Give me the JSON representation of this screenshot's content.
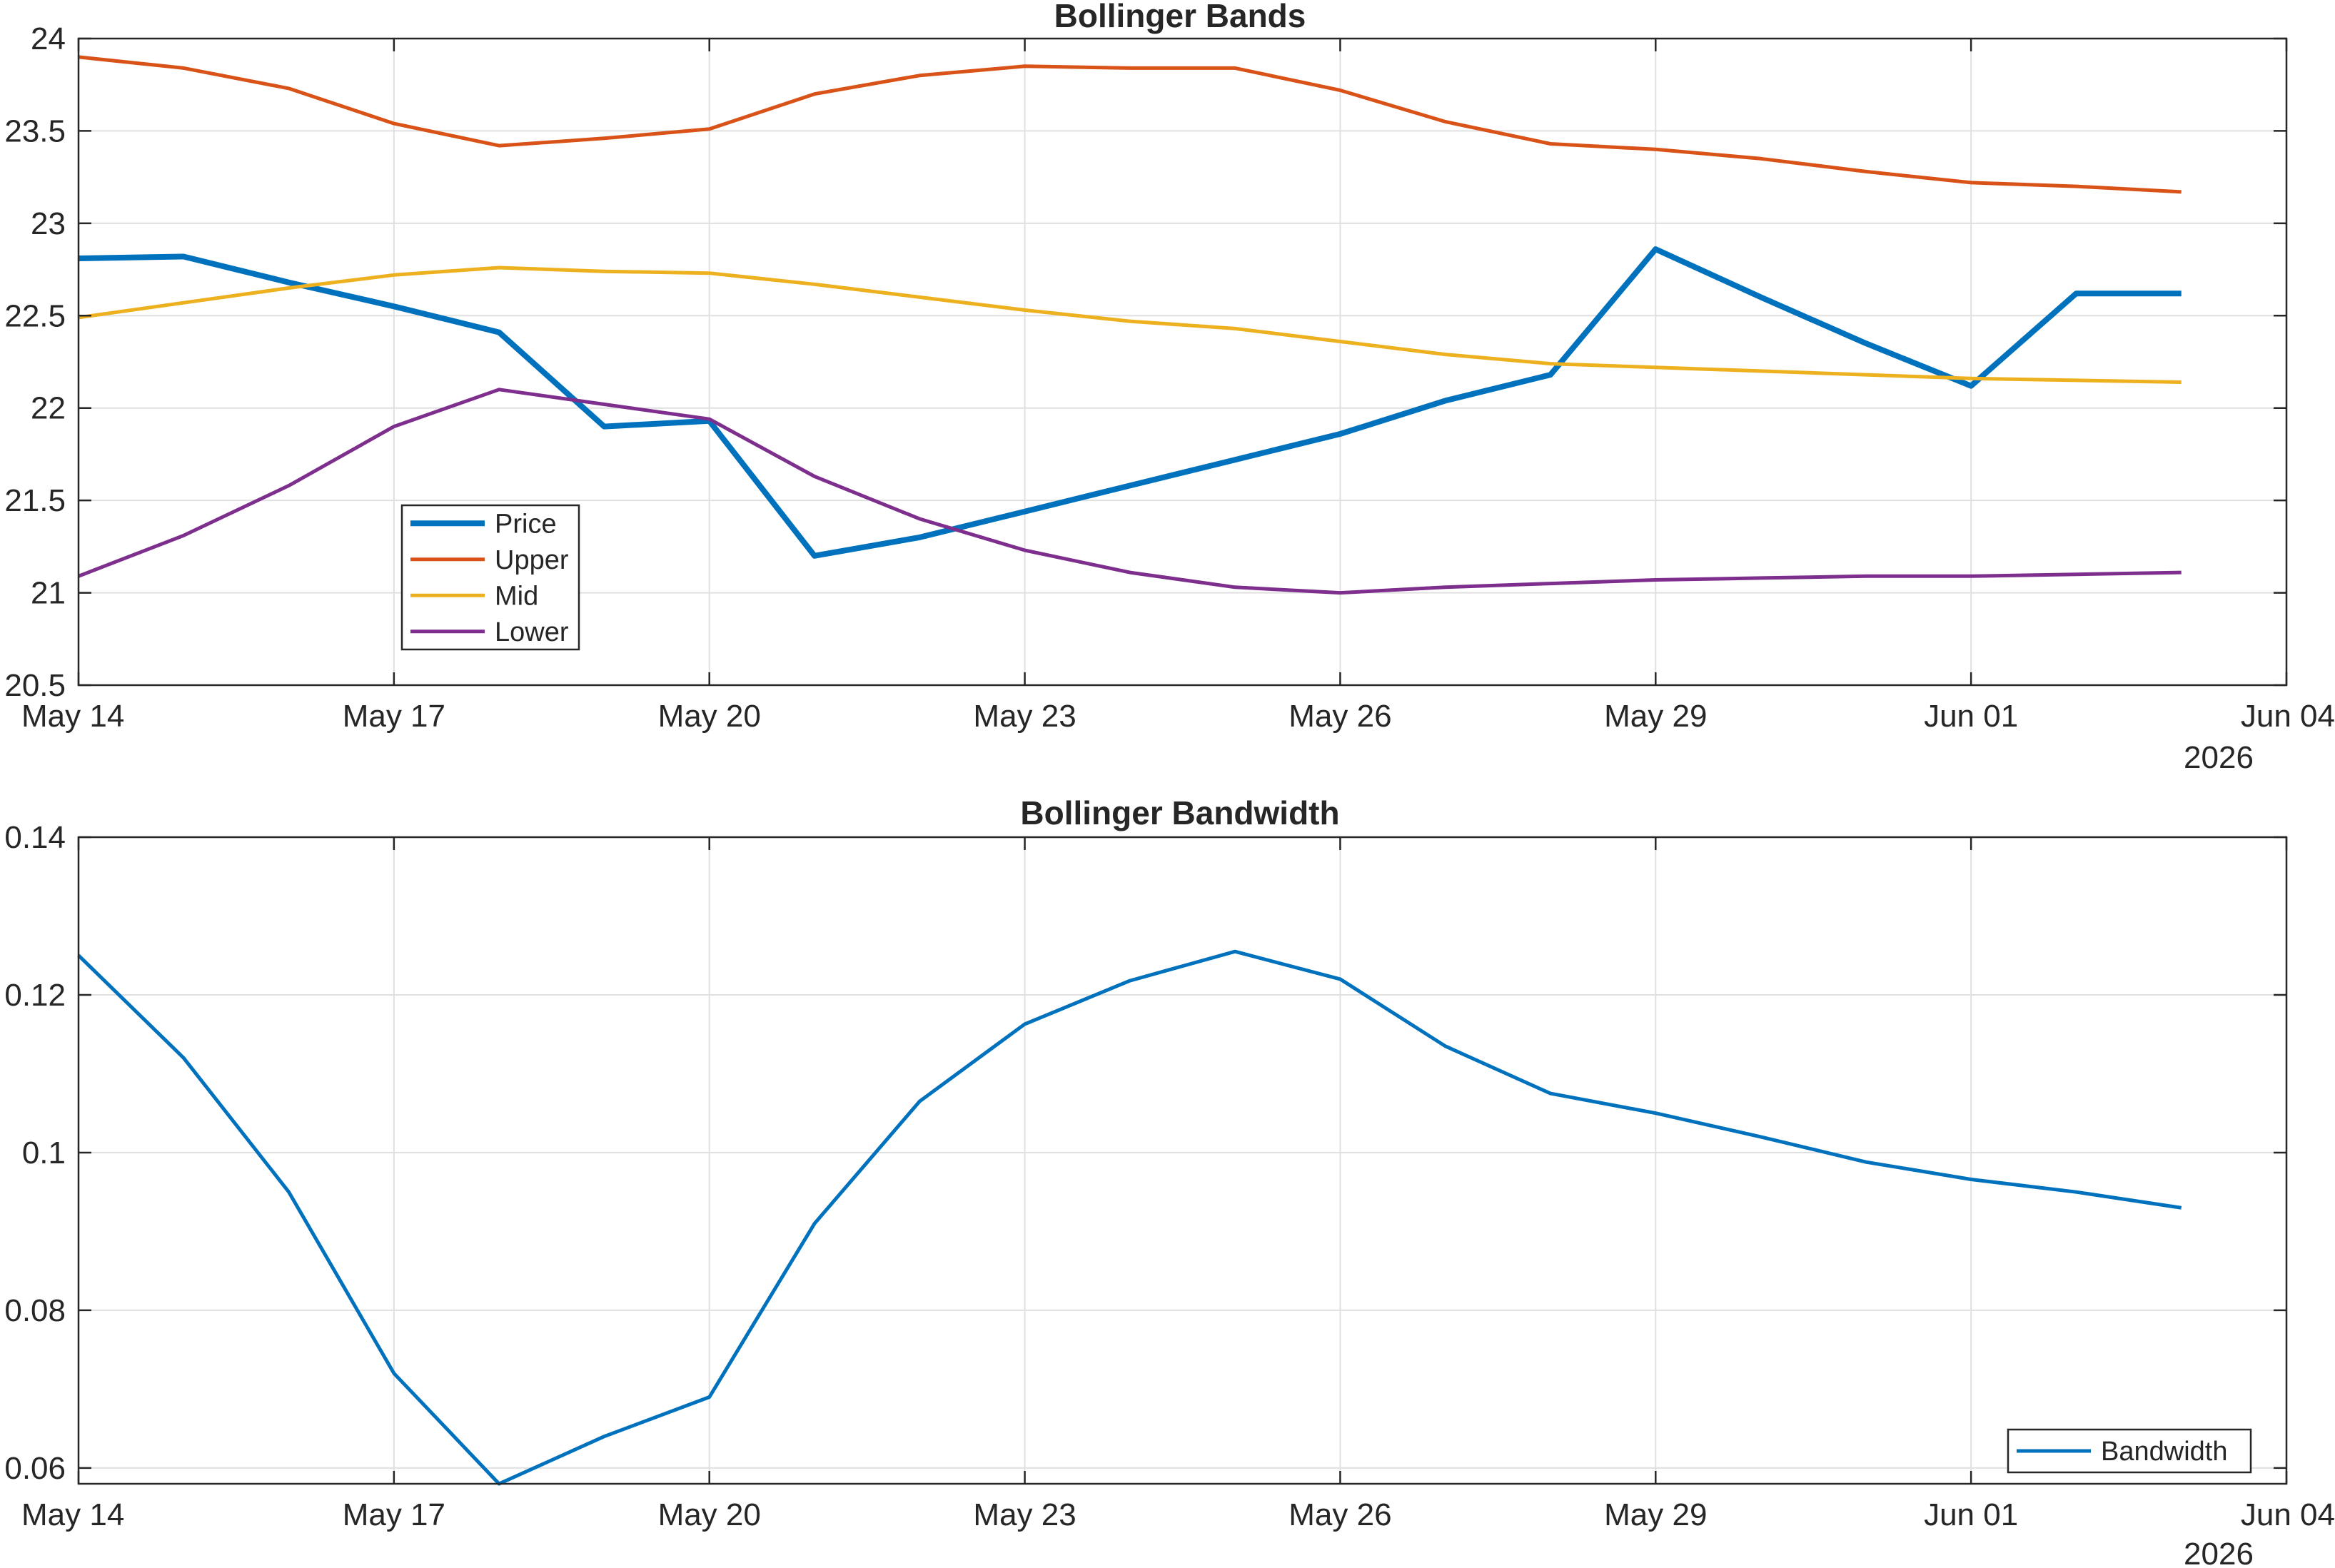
{
  "chart_data": [
    {
      "type": "line",
      "title": "Bollinger Bands",
      "xlabel": "",
      "ylabel": "",
      "x_ticks": [
        "May 14",
        "May 17",
        "May 20",
        "May 23",
        "May 26",
        "May 29",
        "Jun 01",
        "Jun 04"
      ],
      "x_secondary_label": "2026",
      "xlim": [
        "2026-05-14",
        "2026-06-04"
      ],
      "ylim": [
        20.5,
        24
      ],
      "y_ticks": [
        "20.5",
        "21",
        "21.5",
        "22",
        "22.5",
        "23",
        "23.5",
        "24"
      ],
      "grid": true,
      "legend_position": "lower-left",
      "x": [
        "2026-05-14",
        "2026-05-15",
        "2026-05-16",
        "2026-05-17",
        "2026-05-18",
        "2026-05-19",
        "2026-05-20",
        "2026-05-21",
        "2026-05-22",
        "2026-05-23",
        "2026-05-24",
        "2026-05-25",
        "2026-05-26",
        "2026-05-27",
        "2026-05-28",
        "2026-05-29",
        "2026-05-30",
        "2026-05-31",
        "2026-06-01",
        "2026-06-02",
        "2026-06-03"
      ],
      "series": [
        {
          "name": "Price",
          "color": "#0072BD",
          "weight": "thick",
          "values": [
            22.81,
            22.82,
            22.68,
            22.55,
            22.41,
            21.9,
            21.93,
            21.2,
            21.3,
            21.44,
            21.58,
            21.72,
            21.86,
            22.04,
            22.18,
            22.86,
            22.6,
            22.35,
            22.12,
            22.62,
            22.62
          ]
        },
        {
          "name": "Upper",
          "color": "#D95319",
          "weight": "normal",
          "values": [
            23.9,
            23.84,
            23.73,
            23.54,
            23.42,
            23.46,
            23.51,
            23.7,
            23.8,
            23.85,
            23.84,
            23.84,
            23.72,
            23.55,
            23.43,
            23.4,
            23.35,
            23.28,
            23.22,
            23.2,
            23.17
          ]
        },
        {
          "name": "Mid",
          "color": "#EDB120",
          "weight": "normal",
          "values": [
            22.49,
            22.57,
            22.65,
            22.72,
            22.76,
            22.74,
            22.73,
            22.67,
            22.6,
            22.53,
            22.47,
            22.43,
            22.36,
            22.29,
            22.24,
            22.22,
            22.2,
            22.18,
            22.16,
            22.15,
            22.14
          ]
        },
        {
          "name": "Lower",
          "color": "#7E2F8E",
          "weight": "normal",
          "values": [
            21.09,
            21.31,
            21.58,
            21.9,
            22.1,
            22.02,
            21.94,
            21.63,
            21.4,
            21.23,
            21.11,
            21.03,
            21.0,
            21.03,
            21.05,
            21.07,
            21.08,
            21.09,
            21.09,
            21.1,
            21.11
          ]
        }
      ]
    },
    {
      "type": "line",
      "title": "Bollinger Bandwidth",
      "xlabel": "",
      "ylabel": "",
      "x_ticks": [
        "May 14",
        "May 17",
        "May 20",
        "May 23",
        "May 26",
        "May 29",
        "Jun 01",
        "Jun 04"
      ],
      "x_secondary_label": "2026",
      "xlim": [
        "2026-05-14",
        "2026-06-04"
      ],
      "ylim": [
        0.058,
        0.14
      ],
      "y_ticks": [
        "0.06",
        "0.08",
        "0.1",
        "0.12",
        "0.14"
      ],
      "grid": true,
      "legend_position": "lower-right",
      "x": [
        "2026-05-14",
        "2026-05-15",
        "2026-05-16",
        "2026-05-17",
        "2026-05-18",
        "2026-05-19",
        "2026-05-20",
        "2026-05-21",
        "2026-05-22",
        "2026-05-23",
        "2026-05-24",
        "2026-05-25",
        "2026-05-26",
        "2026-05-27",
        "2026-05-28",
        "2026-05-29",
        "2026-05-30",
        "2026-05-31",
        "2026-06-01",
        "2026-06-02",
        "2026-06-03"
      ],
      "series": [
        {
          "name": "Bandwidth",
          "color": "#0072BD",
          "weight": "normal",
          "values": [
            0.125,
            0.112,
            0.095,
            0.072,
            0.058,
            0.064,
            0.069,
            0.091,
            0.1065,
            0.1163,
            0.1218,
            0.1255,
            0.122,
            0.1135,
            0.1075,
            0.105,
            0.102,
            0.0988,
            0.0966,
            0.095,
            0.093
          ]
        }
      ]
    }
  ]
}
